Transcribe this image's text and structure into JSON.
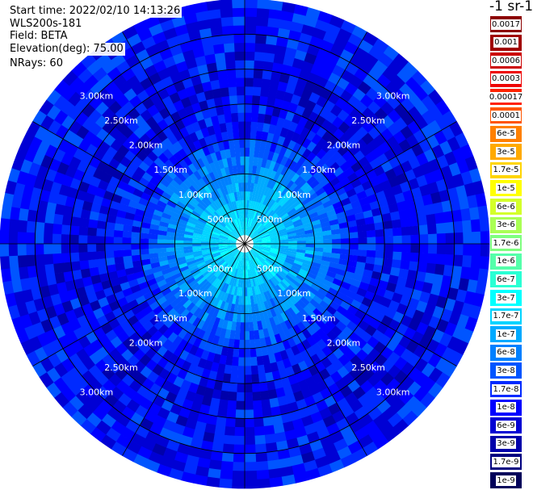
{
  "info": {
    "start_time": "Start time: 2022/02/10 14:13:26",
    "instrument": "WLS200s-181",
    "field": "Field: BETA",
    "elevation": "Elevation(deg): 75.00",
    "nrays": "NRays: 60"
  },
  "colorbar": {
    "title": "-1 sr-1",
    "labels": [
      "0.0017",
      "0.001",
      "0.0006",
      "0.0003",
      "0.00017",
      "0.0001",
      "6e-5",
      "3e-5",
      "1.7e-5",
      "1e-5",
      "6e-6",
      "3e-6",
      "1.7e-6",
      "1e-6",
      "6e-7",
      "3e-7",
      "1.7e-7",
      "1e-7",
      "6e-8",
      "3e-8",
      "1.7e-8",
      "1e-8",
      "6e-9",
      "3e-9",
      "1.7e-9",
      "1e-9"
    ],
    "colors": [
      "#8b0000",
      "#a00000",
      "#cc0000",
      "#ee0000",
      "#ff2200",
      "#ff5500",
      "#ff8000",
      "#ffaa00",
      "#ffd500",
      "#ffff00",
      "#d4ff2a",
      "#aaff55",
      "#80ff80",
      "#55ffaa",
      "#2affd4",
      "#00ffff",
      "#00d4ff",
      "#00aaff",
      "#0080ff",
      "#0055ff",
      "#002aff",
      "#0000ff",
      "#0000d4",
      "#0000aa",
      "#000080",
      "#00005a"
    ]
  },
  "chart_data": {
    "type": "heatmap",
    "projection": "polar-ppi",
    "field": "BETA",
    "elevation_deg": 75.0,
    "n_rays": 60,
    "range_rings_km": [
      0.5,
      1.0,
      1.5,
      2.0,
      2.5,
      3.0
    ],
    "ring_labels": [
      "500m",
      "1.00km",
      "1.50km",
      "2.00km",
      "2.50km",
      "3.00km"
    ],
    "max_range_km": 3.5,
    "gate_km": 0.125,
    "radial_profile_log10_beta": [
      [
        0.0,
        -6.8
      ],
      [
        0.25,
        -6.7
      ],
      [
        0.5,
        -6.8
      ],
      [
        0.75,
        -7.0
      ],
      [
        1.0,
        -7.15
      ],
      [
        1.25,
        -7.4
      ],
      [
        1.5,
        -7.75
      ],
      [
        1.75,
        -7.95
      ],
      [
        2.0,
        -8.05
      ],
      [
        2.5,
        -8.05
      ],
      [
        3.0,
        -7.95
      ],
      [
        3.5,
        -7.85
      ]
    ],
    "center_gap_km": 0.125
  }
}
